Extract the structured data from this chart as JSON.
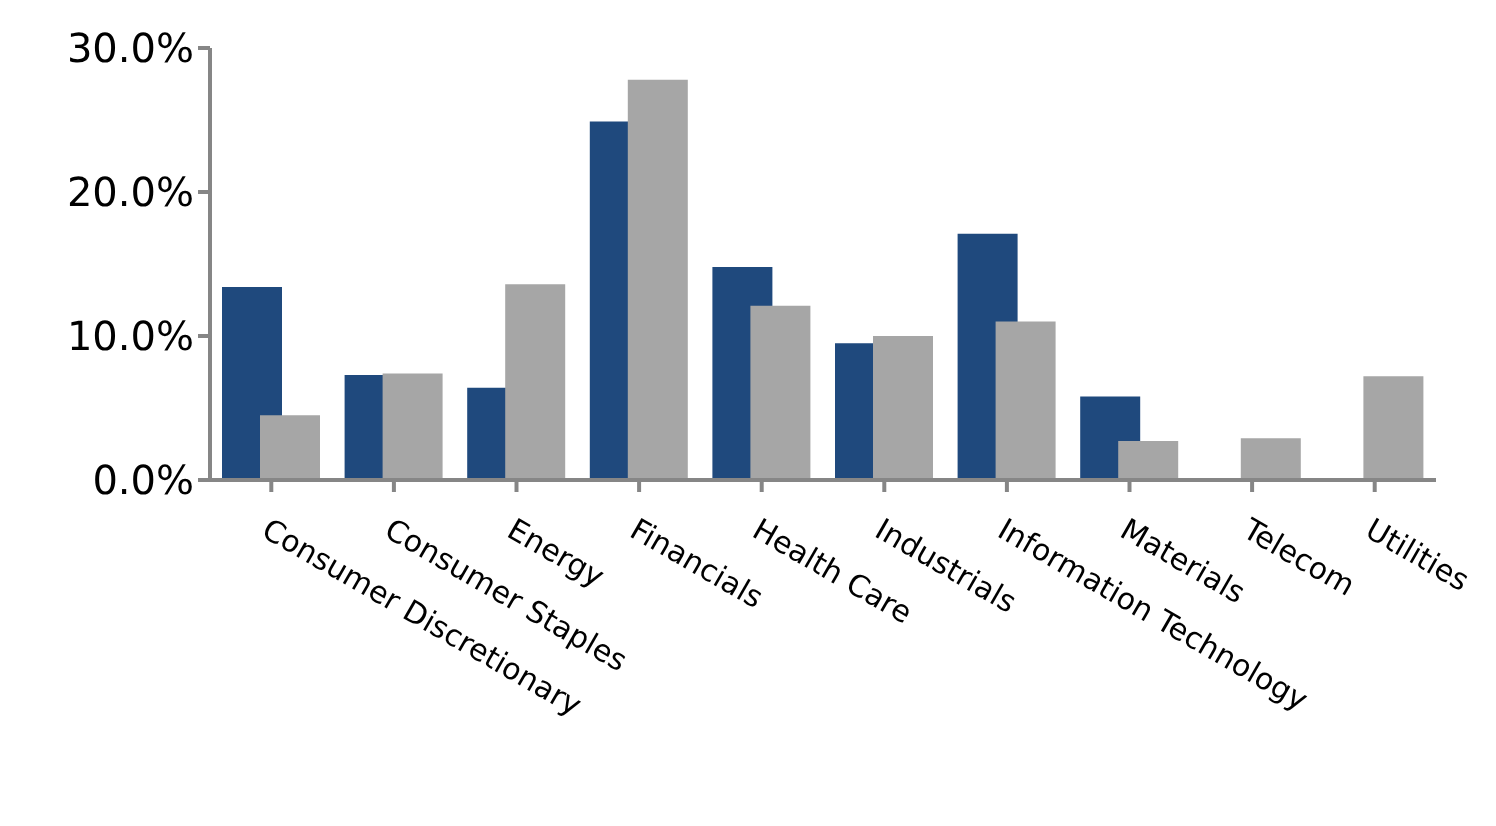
{
  "chart_data": {
    "type": "bar",
    "categories": [
      "Consumer Discretionary",
      "Consumer Staples",
      "Energy",
      "Financials",
      "Health Care",
      "Industrials",
      "Information Technology",
      "Materials",
      "Telecom",
      "Utilities"
    ],
    "series": [
      {
        "color": "#1f497d",
        "values": [
          13.4,
          7.3,
          6.4,
          24.9,
          14.8,
          9.5,
          17.1,
          5.8,
          0,
          0
        ]
      },
      {
        "color": "#a6a6a6",
        "values": [
          4.5,
          7.4,
          13.6,
          27.8,
          12.1,
          10.0,
          11.0,
          2.7,
          2.9,
          7.2
        ]
      }
    ],
    "ylim": [
      0,
      30
    ],
    "yticks": [
      {
        "value": 0,
        "label": "0.0%"
      },
      {
        "value": 10,
        "label": "10.0%"
      },
      {
        "value": 20,
        "label": "20.0%"
      },
      {
        "value": 30,
        "label": "30.0%"
      }
    ],
    "grid": false,
    "legend": false
  }
}
